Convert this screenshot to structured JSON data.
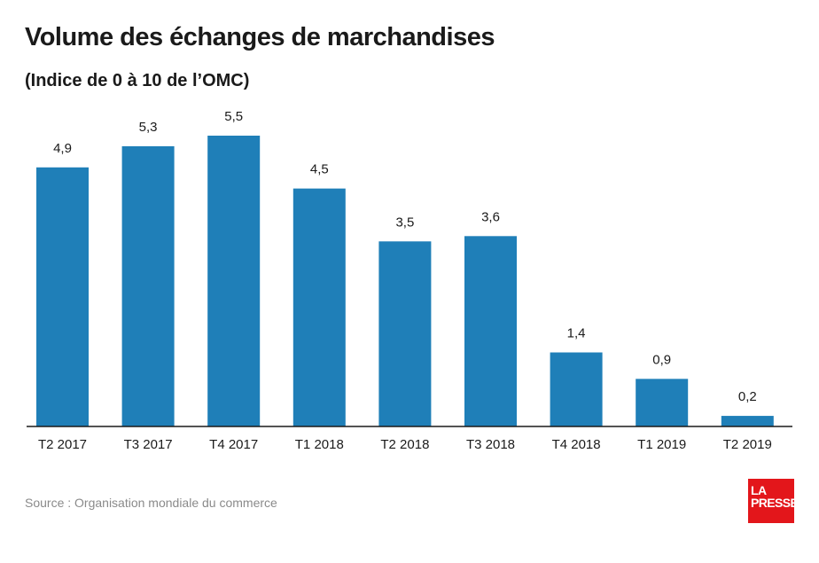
{
  "header": {
    "title": "Volume des échanges de marchandises",
    "subtitle": "(Indice de 0 à 10 de l’OMC)"
  },
  "chart_data": {
    "type": "bar",
    "title": "Volume des échanges de marchandises",
    "subtitle": "(Indice de 0 à 10 de l’OMC)",
    "categories": [
      "T2 2017",
      "T3 2017",
      "T4 2017",
      "T1 2018",
      "T2 2018",
      "T3 2018",
      "T4 2018",
      "T1 2019",
      "T2 2019"
    ],
    "values": [
      4.9,
      5.3,
      5.5,
      4.5,
      3.5,
      3.6,
      1.4,
      0.9,
      0.2
    ],
    "value_labels": [
      "4,9",
      "5,3",
      "5,5",
      "4,5",
      "3,5",
      "3,6",
      "1,4",
      "0,9",
      "0,2"
    ],
    "ylim": [
      0,
      5.5
    ],
    "grid": false,
    "bar_color": "#1f7fb8"
  },
  "footer": {
    "source": "Source : Organisation mondiale du commerce",
    "logo_line1": "LA",
    "logo_line2": "PRESSE",
    "logo_color": "#e3161b"
  }
}
